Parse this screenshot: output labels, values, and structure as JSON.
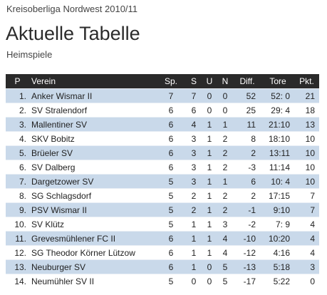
{
  "header": {
    "league": "Kreisoberliga Nordwest 2010/11",
    "title": "Aktuelle Tabelle",
    "subtitle": "Heimspiele"
  },
  "table": {
    "columns": [
      "P",
      "Verein",
      "Sp.",
      "S",
      "U",
      "N",
      "Diff.",
      "Tore",
      "Pkt."
    ],
    "rows": [
      {
        "pos": "1.",
        "team": "Anker Wismar II",
        "sp": "7",
        "s": "7",
        "u": "0",
        "n": "0",
        "diff": "52",
        "tore": "52:  0",
        "pkt": "21"
      },
      {
        "pos": "2.",
        "team": "SV Stralendorf",
        "sp": "6",
        "s": "6",
        "u": "0",
        "n": "0",
        "diff": "25",
        "tore": "29:  4",
        "pkt": "18"
      },
      {
        "pos": "3.",
        "team": "Mallentiner SV",
        "sp": "6",
        "s": "4",
        "u": "1",
        "n": "1",
        "diff": "11",
        "tore": "21:10",
        "pkt": "13"
      },
      {
        "pos": "4.",
        "team": "SKV Bobitz",
        "sp": "6",
        "s": "3",
        "u": "1",
        "n": "2",
        "diff": "8",
        "tore": "18:10",
        "pkt": "10"
      },
      {
        "pos": "5.",
        "team": "Brüeler SV",
        "sp": "6",
        "s": "3",
        "u": "1",
        "n": "2",
        "diff": "2",
        "tore": "13:11",
        "pkt": "10"
      },
      {
        "pos": "6.",
        "team": "SV Dalberg",
        "sp": "6",
        "s": "3",
        "u": "1",
        "n": "2",
        "diff": "-3",
        "tore": "11:14",
        "pkt": "10"
      },
      {
        "pos": "7.",
        "team": "Dargetzower SV",
        "sp": "5",
        "s": "3",
        "u": "1",
        "n": "1",
        "diff": "6",
        "tore": "10:  4",
        "pkt": "10"
      },
      {
        "pos": "8.",
        "team": "SG Schlagsdorf",
        "sp": "5",
        "s": "2",
        "u": "1",
        "n": "2",
        "diff": "2",
        "tore": "17:15",
        "pkt": "7"
      },
      {
        "pos": "9.",
        "team": "PSV Wismar II",
        "sp": "5",
        "s": "2",
        "u": "1",
        "n": "2",
        "diff": "-1",
        "tore": "9:10",
        "pkt": "7"
      },
      {
        "pos": "10.",
        "team": "SV Klütz",
        "sp": "5",
        "s": "1",
        "u": "1",
        "n": "3",
        "diff": "-2",
        "tore": "7:  9",
        "pkt": "4"
      },
      {
        "pos": "11.",
        "team": "Grevesmühlener FC II",
        "sp": "6",
        "s": "1",
        "u": "1",
        "n": "4",
        "diff": "-10",
        "tore": "10:20",
        "pkt": "4"
      },
      {
        "pos": "12.",
        "team": "SG Theodor Körner Lützow",
        "sp": "6",
        "s": "1",
        "u": "1",
        "n": "4",
        "diff": "-12",
        "tore": "4:16",
        "pkt": "4"
      },
      {
        "pos": "13.",
        "team": "Neuburger SV",
        "sp": "6",
        "s": "1",
        "u": "0",
        "n": "5",
        "diff": "-13",
        "tore": "5:18",
        "pkt": "3"
      },
      {
        "pos": "14.",
        "team": "Neumühler SV II",
        "sp": "5",
        "s": "0",
        "u": "0",
        "n": "5",
        "diff": "-17",
        "tore": "5:22",
        "pkt": "0"
      }
    ]
  },
  "colors": {
    "header_bg": "#2a2a2a",
    "row_odd_bg": "#c9d9ea",
    "row_even_bg": "#ffffff"
  }
}
